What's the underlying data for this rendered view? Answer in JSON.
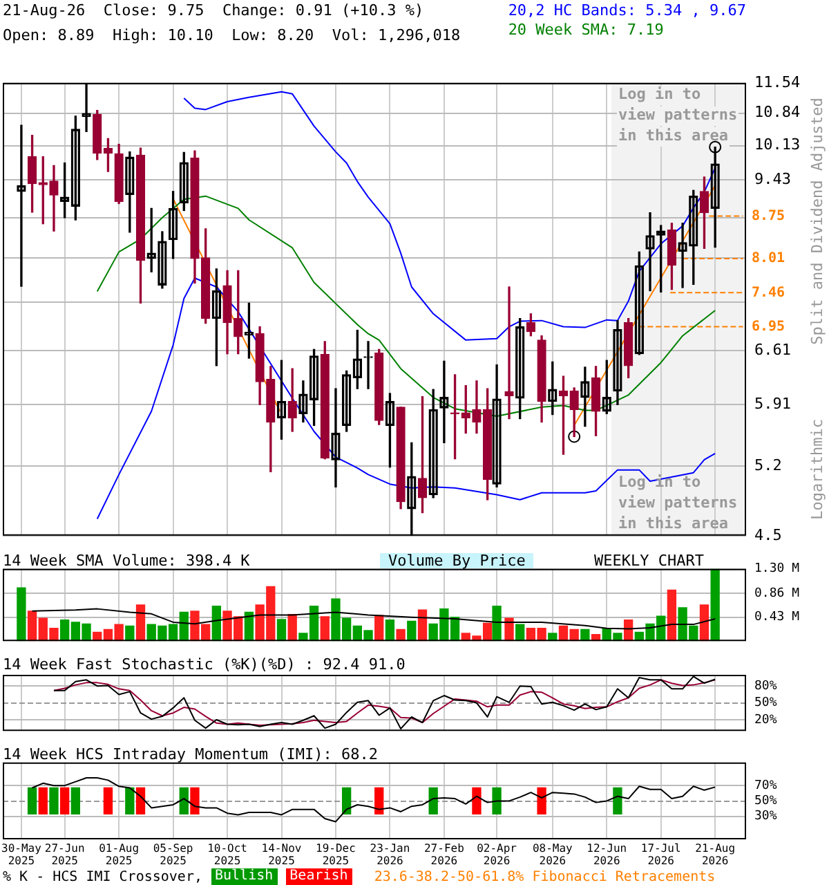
{
  "chart_data": [
    {
      "type": "candlestick",
      "title": "21-Aug-26  Close: 9.75  Change: 0.91 (+10.3 %)",
      "subtitle": "Open: 8.89  High: 10.10  Low: 8.20  Vol: 1,296,018",
      "ylabel": "Split and Dividend Adjusted",
      "color": "#990033",
      "log": true,
      "grid": true,
      "legend": "top right",
      "tick_labels": "y",
      "colors": [
        "#000000",
        "#990033",
        "#990033",
        "#990033",
        "#000000",
        "#000000",
        "#000000",
        "#990033",
        "#990033",
        "#990033",
        "#000000",
        "#990033",
        "#000000",
        "#000000",
        "#000000",
        "#000000",
        "#990033",
        "#990033",
        "#000000",
        "#990033",
        "#990033",
        "#000000",
        "#990033",
        "#990033",
        "#000000",
        "#990033",
        "#000000",
        "#000000",
        "#990033",
        "#000000",
        "#000000",
        "#000000",
        "#000000",
        "#990033",
        "#000000",
        "#990033",
        "#000000",
        "#990033",
        "#000000",
        "#000000",
        "#990033",
        "#990033",
        "#990033",
        "#990033",
        "#000000",
        "#990033",
        "#000000",
        "#990033",
        "#990033",
        "#000000",
        "#990033",
        "#990033",
        "#000000",
        "#990033",
        "#000000",
        "#000000",
        "#990033",
        "#000000",
        "#000000",
        "#000000",
        "#990033",
        "#000000",
        "#000000",
        "#990033",
        "#000000"
      ],
      "x": [
        "2025-05-30",
        "2025-06-06",
        "2025-06-13",
        "2025-06-20",
        "2025-06-27",
        "2025-07-04",
        "2025-07-11",
        "2025-07-18",
        "2025-07-25",
        "2025-08-01",
        "2025-08-08",
        "2025-08-15",
        "2025-08-22",
        "2025-08-29",
        "2025-09-05",
        "2025-09-12",
        "2025-09-19",
        "2025-09-26",
        "2025-10-03",
        "2025-10-10",
        "2025-10-17",
        "2025-10-24",
        "2025-10-31",
        "2025-11-07",
        "2025-11-14",
        "2025-11-21",
        "2025-11-28",
        "2025-12-05",
        "2025-12-12",
        "2025-12-19",
        "2025-12-26",
        "2026-01-02",
        "2026-01-09",
        "2026-01-16",
        "2026-01-23",
        "2026-01-30",
        "2026-02-06",
        "2026-02-13",
        "2026-02-20",
        "2026-02-27",
        "2026-03-06",
        "2026-03-13",
        "2026-03-20",
        "2026-03-27",
        "2026-04-02",
        "2026-04-10",
        "2026-04-17",
        "2026-04-24",
        "2026-05-01",
        "2026-05-08",
        "2026-05-15",
        "2026-05-22",
        "2026-05-29",
        "2026-06-05",
        "2026-06-12",
        "2026-06-19",
        "2026-06-26",
        "2026-07-03",
        "2026-07-10",
        "2026-07-17",
        "2026-07-24",
        "2026-07-31",
        "2026-08-07",
        "2026-08-14",
        "2026-08-21"
      ],
      "ohlc": [
        [
          9.21,
          10.57,
          7.56,
          9.32
        ],
        [
          9.9,
          10.35,
          8.82,
          9.36
        ],
        [
          9.38,
          9.9,
          8.61,
          9.34
        ],
        [
          9.41,
          9.72,
          8.48,
          9.14
        ],
        [
          9.02,
          9.77,
          8.72,
          9.1
        ],
        [
          8.93,
          10.77,
          8.68,
          10.48
        ],
        [
          10.76,
          11.54,
          10.43,
          10.83
        ],
        [
          10.81,
          10.9,
          9.84,
          9.97
        ],
        [
          10.07,
          10.28,
          9.6,
          9.97
        ],
        [
          9.96,
          10.16,
          8.98,
          9.02
        ],
        [
          9.15,
          10.0,
          8.46,
          9.89
        ],
        [
          9.93,
          10.08,
          7.3,
          7.98
        ],
        [
          8.01,
          8.89,
          7.79,
          8.1
        ],
        [
          7.58,
          8.47,
          7.53,
          8.3
        ],
        [
          8.33,
          9.21,
          8.01,
          8.89
        ],
        [
          8.99,
          9.99,
          8.85,
          9.78
        ],
        [
          9.87,
          10.02,
          7.61,
          8.01
        ],
        [
          8.02,
          8.52,
          7.0,
          7.07
        ],
        [
          7.07,
          7.84,
          6.41,
          7.49
        ],
        [
          7.57,
          7.81,
          6.57,
          7.01
        ],
        [
          7.07,
          7.81,
          6.57,
          6.81
        ],
        [
          6.83,
          7.3,
          6.51,
          6.87
        ],
        [
          6.85,
          6.95,
          5.91,
          6.2
        ],
        [
          6.23,
          6.4,
          5.14,
          5.7
        ],
        [
          5.75,
          6.48,
          5.5,
          5.95
        ],
        [
          5.95,
          6.37,
          5.59,
          5.75
        ],
        [
          5.8,
          6.21,
          5.7,
          6.04
        ],
        [
          5.97,
          6.63,
          5.66,
          6.54
        ],
        [
          6.56,
          6.74,
          5.28,
          5.29
        ],
        [
          5.27,
          6.11,
          4.98,
          5.57
        ],
        [
          5.66,
          6.34,
          5.59,
          6.29
        ],
        [
          6.25,
          6.9,
          6.11,
          6.5
        ],
        [
          6.52,
          6.74,
          6.11,
          6.53
        ],
        [
          6.58,
          6.63,
          5.67,
          5.72
        ],
        [
          5.66,
          6.05,
          5.19,
          5.95
        ],
        [
          5.88,
          5.88,
          4.76,
          4.83
        ],
        [
          4.76,
          5.46,
          4.5,
          5.09
        ],
        [
          5.07,
          6.01,
          4.72,
          4.87
        ],
        [
          4.9,
          6.1,
          4.87,
          5.85
        ],
        [
          5.87,
          6.47,
          5.46,
          6.0
        ],
        [
          5.81,
          6.29,
          5.28,
          5.8
        ],
        [
          5.81,
          6.15,
          5.57,
          5.75
        ],
        [
          5.85,
          6.21,
          5.57,
          5.7
        ],
        [
          5.85,
          6.11,
          4.85,
          5.06
        ],
        [
          5.01,
          6.42,
          4.98,
          5.98
        ],
        [
          6.07,
          7.55,
          5.74,
          6.02
        ],
        [
          5.99,
          7.07,
          5.74,
          6.95
        ],
        [
          7.01,
          7.14,
          6.82,
          6.88
        ],
        [
          6.76,
          6.82,
          5.7,
          5.95
        ],
        [
          5.95,
          6.46,
          5.79,
          6.1
        ],
        [
          6.08,
          6.27,
          5.33,
          6.02
        ],
        [
          6.08,
          6.12,
          5.53,
          5.85
        ],
        [
          6.0,
          6.39,
          5.65,
          6.2
        ],
        [
          6.25,
          6.4,
          5.54,
          5.83
        ],
        [
          5.83,
          6.48,
          5.8,
          6.0
        ],
        [
          6.08,
          7.04,
          5.91,
          6.91
        ],
        [
          7.01,
          7.07,
          6.25,
          6.41
        ],
        [
          6.57,
          8.12,
          6.56,
          7.89
        ],
        [
          8.17,
          8.81,
          7.49,
          8.4
        ],
        [
          8.41,
          8.58,
          7.47,
          8.48
        ],
        [
          8.5,
          8.62,
          7.51,
          7.9
        ],
        [
          8.13,
          8.62,
          7.54,
          8.28
        ],
        [
          8.22,
          9.23,
          7.59,
          9.12
        ],
        [
          9.21,
          9.49,
          8.18,
          8.81
        ],
        [
          8.89,
          10.1,
          8.2,
          9.75
        ]
      ],
      "series": [
        {
          "type": "line",
          "name": "20,2 HC Bands: 5.34 , 9.67",
          "color": "#0000ff",
          "x": [
            "2025-09-12",
            "2025-09-19",
            "2025-09-26",
            "2025-10-10",
            "2025-10-24",
            "2025-11-14",
            "2025-11-21",
            "2025-12-05",
            "2025-12-19",
            "2025-12-26",
            "2026-01-02",
            "2026-01-09",
            "2026-01-23",
            "2026-01-30",
            "2026-02-06",
            "2026-02-20",
            "2026-03-13",
            "2026-04-02",
            "2026-04-10",
            "2026-04-17",
            "2026-05-01",
            "2026-05-15",
            "2026-05-29",
            "2026-06-12",
            "2026-06-19",
            "2026-06-26",
            "2026-07-03",
            "2026-07-17",
            "2026-07-31",
            "2026-08-07",
            "2026-08-14",
            "2026-08-21"
          ],
          "values": [
            11.18,
            10.95,
            10.92,
            11.1,
            11.2,
            11.33,
            11.28,
            10.55,
            10.0,
            9.77,
            9.4,
            9.1,
            8.61,
            8.1,
            7.55,
            7.14,
            6.76,
            6.78,
            6.95,
            7.03,
            7.04,
            6.95,
            6.94,
            7.05,
            7.04,
            7.33,
            7.8,
            8.26,
            8.57,
            8.9,
            9.2,
            9.67
          ]
        },
        {
          "type": "line",
          "color": "#0000ff",
          "x": [
            "2025-07-18",
            "2025-08-01",
            "2025-08-22",
            "2025-09-05",
            "2025-09-12",
            "2025-09-19",
            "2025-10-03",
            "2025-10-17",
            "2025-11-21",
            "2025-12-05",
            "2025-12-19",
            "2026-01-02",
            "2026-01-09",
            "2026-01-23",
            "2026-02-06",
            "2026-02-20",
            "2026-03-06",
            "2026-04-02",
            "2026-04-17",
            "2026-05-01",
            "2026-05-29",
            "2026-06-05",
            "2026-06-19",
            "2026-07-03",
            "2026-07-10",
            "2026-08-07",
            "2026-08-14",
            "2026-08-21"
          ],
          "values": [
            4.66,
            5.11,
            5.83,
            6.69,
            7.37,
            7.69,
            7.55,
            7.17,
            5.99,
            5.59,
            5.3,
            5.18,
            5.11,
            5.01,
            4.97,
            4.98,
            4.97,
            4.9,
            4.85,
            4.92,
            4.92,
            4.94,
            5.16,
            5.16,
            5.04,
            5.13,
            5.27,
            5.34
          ]
        },
        {
          "type": "line",
          "name": "20 Week SMA: 7.19",
          "color": "#008000",
          "x": [
            "2025-07-18",
            "2025-08-01",
            "2025-08-15",
            "2025-08-29",
            "2025-09-12",
            "2025-09-26",
            "2025-10-17",
            "2025-10-24",
            "2025-11-21",
            "2025-12-05",
            "2026-01-02",
            "2026-01-09",
            "2026-01-16",
            "2026-01-30",
            "2026-02-20",
            "2026-03-06",
            "2026-04-02",
            "2026-05-01",
            "2026-05-15",
            "2026-05-29",
            "2026-06-05",
            "2026-06-26",
            "2026-07-17",
            "2026-07-31",
            "2026-08-21"
          ],
          "values": [
            7.48,
            8.12,
            8.34,
            8.72,
            9.06,
            9.12,
            8.89,
            8.68,
            8.19,
            7.62,
            6.98,
            6.85,
            6.76,
            6.37,
            6.0,
            5.86,
            5.77,
            5.88,
            5.9,
            5.84,
            5.84,
            6.03,
            6.45,
            6.82,
            7.19
          ]
        },
        {
          "type": "line",
          "color": "#ff8000",
          "x": [
            "2025-09-05",
            "2025-11-13"
          ],
          "values": [
            9.07,
            5.83
          ]
        },
        {
          "type": "line",
          "color": "#ff8000",
          "x": [
            "2026-05-22",
            "2026-08-21"
          ],
          "values": [
            5.66,
            9.32
          ]
        },
        {
          "type": "line",
          "name": "8.75",
          "color": "#ff8000",
          "line_style": "dashed",
          "x": [
            "2026-08-17",
            "2026-09-08"
          ],
          "values": [
            8.75,
            8.75
          ]
        },
        {
          "type": "line",
          "name": "8.01",
          "color": "#ff8000",
          "line_style": "dashed",
          "x": [
            "2026-07-31",
            "2026-09-08"
          ],
          "values": [
            8.01,
            8.01
          ]
        },
        {
          "type": "line",
          "name": "7.46",
          "color": "#ff8000",
          "line_style": "dashed",
          "x": [
            "2026-07-23",
            "2026-09-08"
          ],
          "values": [
            7.46,
            7.46
          ]
        },
        {
          "type": "line",
          "name": "6.95",
          "color": "#ff8000",
          "line_style": "dashed",
          "x": [
            "2026-07-03",
            "2026-09-08"
          ],
          "values": [
            6.95,
            6.95
          ]
        },
        {
          "type": "scatter",
          "color": "#000000",
          "marker": "circle",
          "x": [
            "2026-05-22",
            "2026-08-21"
          ],
          "values": [
            5.53,
            10.1
          ]
        }
      ],
      "ylim": [
        4.5,
        11.54
      ],
      "yticks": [
        4.5,
        5.2,
        5.91,
        6.61,
        {
          "value": 7.31,
          "label": null
        },
        {
          "value": 8.02,
          "label": null
        },
        {
          "value": 8.72,
          "label": null
        },
        9.43,
        10.13,
        10.84,
        11.54
      ],
      "xlim": [
        "2025-05-18",
        "2026-09-10"
      ],
      "xticks": [
        {
          "value": "2025-05-30",
          "label": null
        },
        {
          "value": "2025-06-27",
          "label": null
        },
        {
          "value": "2025-08-01",
          "label": null
        },
        {
          "value": "2025-09-05",
          "label": null
        },
        {
          "value": "2025-10-10",
          "label": null
        },
        {
          "value": "2025-11-14",
          "label": null
        },
        {
          "value": "2025-12-19",
          "label": null
        },
        {
          "value": "2026-01-23",
          "label": null
        },
        {
          "value": "2026-02-27",
          "label": null
        },
        {
          "value": "2026-04-02",
          "label": null
        },
        {
          "value": "2026-05-08",
          "label": null
        },
        {
          "value": "2026-06-12",
          "label": null
        },
        {
          "value": "2026-07-17",
          "label": null
        },
        {
          "value": "2026-08-21",
          "label": null
        }
      ],
      "bands": [
        {
          "axis": "x",
          "from": "2026-06-15",
          "to": "2026-09-10",
          "label": "Log in to view patterns in this area",
          "color": "#f2f2f2"
        }
      ],
      "annotations": [
        "Logarithmic",
        "Log in to view patterns in this area"
      ]
    },
    {
      "type": "bar",
      "title": "14 Week SMA Volume: 398.4 K",
      "grid": true,
      "tick_labels": "y",
      "x": [
        "2025-05-30",
        "2025-06-06",
        "2025-06-13",
        "2025-06-20",
        "2025-06-27",
        "2025-07-04",
        "2025-07-11",
        "2025-07-18",
        "2025-07-25",
        "2025-08-01",
        "2025-08-08",
        "2025-08-15",
        "2025-08-22",
        "2025-08-29",
        "2025-09-05",
        "2025-09-12",
        "2025-09-19",
        "2025-09-26",
        "2025-10-03",
        "2025-10-10",
        "2025-10-17",
        "2025-10-24",
        "2025-10-31",
        "2025-11-07",
        "2025-11-14",
        "2025-11-21",
        "2025-11-28",
        "2025-12-05",
        "2025-12-12",
        "2025-12-19",
        "2025-12-26",
        "2026-01-02",
        "2026-01-09",
        "2026-01-16",
        "2026-01-23",
        "2026-01-30",
        "2026-02-06",
        "2026-02-13",
        "2026-02-20",
        "2026-02-27",
        "2026-03-06",
        "2026-03-13",
        "2026-03-20",
        "2026-03-27",
        "2026-04-02",
        "2026-04-10",
        "2026-04-17",
        "2026-04-24",
        "2026-05-01",
        "2026-05-08",
        "2026-05-15",
        "2026-05-22",
        "2026-05-29",
        "2026-06-05",
        "2026-06-12",
        "2026-06-19",
        "2026-06-26",
        "2026-07-03",
        "2026-07-10",
        "2026-07-17",
        "2026-07-24",
        "2026-07-31",
        "2026-08-07",
        "2026-08-14",
        "2026-08-21"
      ],
      "series": [
        {
          "type": "bar",
          "values": [
            0.96,
            0.54,
            0.41,
            0.23,
            0.38,
            0.34,
            0.31,
            0.16,
            0.21,
            0.3,
            0.27,
            0.65,
            0.3,
            0.27,
            0.3,
            0.52,
            0.54,
            0.3,
            0.63,
            0.54,
            0.44,
            0.52,
            0.65,
            0.98,
            0.39,
            0.48,
            0.14,
            0.63,
            0.44,
            0.76,
            0.41,
            0.27,
            0.19,
            0.46,
            0.38,
            0.21,
            0.36,
            0.56,
            0.31,
            0.58,
            0.43,
            0.14,
            0.09,
            0.32,
            0.63,
            0.41,
            0.3,
            0.23,
            0.23,
            0.14,
            0.27,
            0.21,
            0.21,
            0.12,
            0.23,
            0.14,
            0.38,
            0.16,
            0.31,
            0.45,
            0.92,
            0.6,
            0.27,
            0.65,
            1.3
          ],
          "colors": [
            "#00a000",
            "#ff2020",
            "#ff2020",
            "#ff2020",
            "#00a000",
            "#00a000",
            "#00a000",
            "#ff2020",
            "#ff2020",
            "#ff2020",
            "#00a000",
            "#ff2020",
            "#00a000",
            "#00a000",
            "#00a000",
            "#00a000",
            "#ff2020",
            "#ff2020",
            "#00a000",
            "#ff2020",
            "#ff2020",
            "#00a000",
            "#ff2020",
            "#ff2020",
            "#00a000",
            "#ff2020",
            "#00a000",
            "#00a000",
            "#ff2020",
            "#00a000",
            "#00a000",
            "#00a000",
            "#00a000",
            "#ff2020",
            "#00a000",
            "#ff2020",
            "#00a000",
            "#ff2020",
            "#00a000",
            "#00a000",
            "#00a000",
            "#ff2020",
            "#ff2020",
            "#ff2020",
            "#00a000",
            "#ff2020",
            "#00a000",
            "#ff2020",
            "#ff2020",
            "#00a000",
            "#ff2020",
            "#ff2020",
            "#00a000",
            "#ff2020",
            "#00a000",
            "#00a000",
            "#ff2020",
            "#00a000",
            "#00a000",
            "#00a000",
            "#ff2020",
            "#00a000",
            "#00a000",
            "#ff2020",
            "#00a000"
          ]
        },
        {
          "type": "line",
          "color": "#000000",
          "x": [
            "2025-06-06",
            "2025-07-04",
            "2025-07-18",
            "2025-08-08",
            "2025-08-22",
            "2025-09-05",
            "2025-09-19",
            "2025-10-03",
            "2025-10-31",
            "2025-11-21",
            "2025-12-19",
            "2026-01-09",
            "2026-02-06",
            "2026-03-06",
            "2026-04-02",
            "2026-05-01",
            "2026-05-29",
            "2026-06-12",
            "2026-06-26",
            "2026-07-10",
            "2026-07-24",
            "2026-08-07",
            "2026-08-21"
          ],
          "values": [
            0.54,
            0.56,
            0.58,
            0.52,
            0.49,
            0.34,
            0.31,
            0.37,
            0.47,
            0.47,
            0.52,
            0.47,
            0.43,
            0.4,
            0.34,
            0.34,
            0.28,
            0.23,
            0.22,
            0.24,
            0.3,
            0.3,
            0.4
          ]
        }
      ],
      "ylim": [
        0,
        1.3
      ],
      "yticks": [
        {
          "value": 0.43,
          "label": "0.43 M"
        },
        {
          "value": 0.86,
          "label": "0.86 M"
        },
        {
          "value": 1.3,
          "label": "1.30 M"
        }
      ],
      "xlim": [
        "2025-05-18",
        "2026-09-10"
      ],
      "xticks": [
        {
          "value": "2025-05-30",
          "label": null
        },
        {
          "value": "2025-06-27",
          "label": null
        },
        {
          "value": "2025-08-01",
          "label": null
        },
        {
          "value": "2025-09-05",
          "label": null
        },
        {
          "value": "2025-10-10",
          "label": null
        },
        {
          "value": "2025-11-14",
          "label": null
        },
        {
          "value": "2025-12-19",
          "label": null
        },
        {
          "value": "2026-01-23",
          "label": null
        },
        {
          "value": "2026-02-27",
          "label": null
        },
        {
          "value": "2026-04-02",
          "label": null
        },
        {
          "value": "2026-05-08",
          "label": null
        },
        {
          "value": "2026-06-12",
          "label": null
        },
        {
          "value": "2026-07-17",
          "label": null
        },
        {
          "value": "2026-08-21",
          "label": null
        }
      ],
      "annotations": [
        "Volume By Price",
        "WEEKLY CHART"
      ]
    },
    {
      "type": "line",
      "title": "14 Week Fast Stochastic (%K)(%D) : 92.4 91.0",
      "grid": true,
      "tick_labels": "y",
      "x": [
        "2025-06-20",
        "2025-06-27",
        "2025-07-04",
        "2025-07-11",
        "2025-07-18",
        "2025-07-25",
        "2025-08-01",
        "2025-08-08",
        "2025-08-15",
        "2025-08-22",
        "2025-08-29",
        "2025-09-05",
        "2025-09-12",
        "2025-09-19",
        "2025-09-26",
        "2025-10-03",
        "2025-10-10",
        "2025-10-17",
        "2025-10-24",
        "2025-10-31",
        "2025-11-07",
        "2025-11-14",
        "2025-11-21",
        "2025-11-28",
        "2025-12-05",
        "2025-12-12",
        "2025-12-19",
        "2025-12-26",
        "2026-01-02",
        "2026-01-09",
        "2026-01-16",
        "2026-01-23",
        "2026-01-30",
        "2026-02-06",
        "2026-02-13",
        "2026-02-20",
        "2026-02-27",
        "2026-03-06",
        "2026-03-13",
        "2026-03-20",
        "2026-03-27",
        "2026-04-02",
        "2026-04-10",
        "2026-04-17",
        "2026-04-24",
        "2026-05-01",
        "2026-05-08",
        "2026-05-15",
        "2026-05-22",
        "2026-05-29",
        "2026-06-05",
        "2026-06-12",
        "2026-06-19",
        "2026-06-26",
        "2026-07-03",
        "2026-07-10",
        "2026-07-17",
        "2026-07-24",
        "2026-07-31",
        "2026-08-07",
        "2026-08-14",
        "2026-08-21"
      ],
      "series": [
        {
          "type": "line",
          "color": "#000000",
          "values": [
            72,
            72,
            88,
            91,
            80,
            81,
            65,
            70,
            32,
            21,
            26,
            41,
            59,
            19,
            5,
            20,
            12,
            11,
            12,
            8,
            12,
            15,
            12,
            19,
            27,
            5,
            12,
            33,
            51,
            54,
            28,
            41,
            4,
            25,
            15,
            54,
            63,
            55,
            54,
            50,
            25,
            61,
            51,
            80,
            79,
            48,
            51,
            45,
            37,
            48,
            38,
            43,
            75,
            59,
            95,
            91,
            91,
            75,
            75,
            97,
            85,
            92
          ]
        },
        {
          "type": "line",
          "color": "#990033",
          "values": [
            72,
            76,
            82,
            86,
            86,
            83,
            75,
            72,
            55,
            36,
            27,
            32,
            42,
            39,
            26,
            14,
            12,
            14,
            12,
            10,
            11,
            12,
            13,
            15,
            19,
            17,
            15,
            17,
            32,
            46,
            44,
            41,
            24,
            23,
            15,
            31,
            44,
            57,
            55,
            53,
            43,
            46,
            46,
            64,
            70,
            69,
            59,
            48,
            45,
            40,
            42,
            43,
            52,
            59,
            76,
            82,
            91,
            85,
            81,
            82,
            86,
            91
          ]
        }
      ],
      "ylim": [
        0,
        100
      ],
      "yticks": [
        {
          "value": 20,
          "label": "20%"
        },
        {
          "value": 50,
          "label": "50%"
        },
        {
          "value": 80,
          "label": "80%"
        }
      ],
      "ref_lines": [
        {
          "axis": "y",
          "value": 50,
          "line_style": "dashed",
          "color": "#999999"
        }
      ],
      "xlim": [
        "2025-05-18",
        "2026-09-10"
      ],
      "xticks": [
        {
          "value": "2025-05-30",
          "label": null
        },
        {
          "value": "2025-06-27",
          "label": null
        },
        {
          "value": "2025-08-01",
          "label": null
        },
        {
          "value": "2025-09-05",
          "label": null
        },
        {
          "value": "2025-10-10",
          "label": null
        },
        {
          "value": "2025-11-14",
          "label": null
        },
        {
          "value": "2025-12-19",
          "label": null
        },
        {
          "value": "2026-01-23",
          "label": null
        },
        {
          "value": "2026-02-27",
          "label": null
        },
        {
          "value": "2026-04-02",
          "label": null
        },
        {
          "value": "2026-05-08",
          "label": null
        },
        {
          "value": "2026-06-12",
          "label": null
        },
        {
          "value": "2026-07-17",
          "label": null
        },
        {
          "value": "2026-08-21",
          "label": null
        }
      ]
    },
    {
      "type": "line",
      "title": "14 Week HCS Intraday Momentum (IMI): 68.2",
      "grid": true,
      "legend": "bottom left",
      "legend_title": "% K - HCS IMI Crossover,",
      "x": [
        "2025-06-06",
        "2025-06-13",
        "2025-06-20",
        "2025-06-27",
        "2025-07-04",
        "2025-07-11",
        "2025-07-18",
        "2025-07-25",
        "2025-08-01",
        "2025-08-08",
        "2025-08-15",
        "2025-08-22",
        "2025-08-29",
        "2025-09-05",
        "2025-09-12",
        "2025-09-19",
        "2025-09-26",
        "2025-10-03",
        "2025-10-10",
        "2025-10-17",
        "2025-10-24",
        "2025-10-31",
        "2025-11-07",
        "2025-11-14",
        "2025-11-21",
        "2025-11-28",
        "2025-12-05",
        "2025-12-12",
        "2025-12-19",
        "2025-12-26",
        "2026-01-02",
        "2026-01-09",
        "2026-01-16",
        "2026-01-23",
        "2026-01-30",
        "2026-02-06",
        "2026-02-13",
        "2026-02-20",
        "2026-02-27",
        "2026-03-06",
        "2026-03-13",
        "2026-03-20",
        "2026-03-27",
        "2026-04-02",
        "2026-04-10",
        "2026-04-17",
        "2026-04-24",
        "2026-05-01",
        "2026-05-08",
        "2026-05-15",
        "2026-05-22",
        "2026-05-29",
        "2026-06-05",
        "2026-06-12",
        "2026-06-19",
        "2026-06-26",
        "2026-07-03",
        "2026-07-10",
        "2026-07-17",
        "2026-07-24",
        "2026-07-31",
        "2026-08-07",
        "2026-08-14",
        "2026-08-21"
      ],
      "series": [
        {
          "type": "line",
          "color": "#000000",
          "values": [
            67,
            73,
            70,
            70,
            75,
            80,
            80,
            77,
            69,
            67,
            56,
            41,
            43,
            45,
            53,
            43,
            41,
            41,
            34,
            32,
            35,
            35,
            35,
            32,
            39,
            39,
            39,
            27,
            23,
            39,
            45,
            43,
            39,
            41,
            36,
            43,
            45,
            53,
            54,
            53,
            46,
            56,
            48,
            50,
            50,
            55,
            61,
            54,
            61,
            60,
            59,
            55,
            48,
            50,
            56,
            53,
            69,
            65,
            65,
            53,
            56,
            69,
            64,
            68
          ]
        },
        {
          "type": "bar",
          "name": "Bullish",
          "color": "#009900",
          "x": [
            "2025-06-06",
            "2025-06-20",
            "2025-07-04",
            "2025-08-08",
            "2025-09-12",
            "2025-12-26",
            "2026-02-20",
            "2026-04-02",
            "2026-06-19"
          ],
          "base": [
            33,
            33,
            33,
            33,
            33,
            33,
            33,
            33,
            33
          ],
          "values": [
            34,
            34,
            34,
            34,
            34,
            34,
            34,
            34,
            34
          ]
        },
        {
          "type": "bar",
          "name": "Bearish",
          "color": "#ff0000",
          "x": [
            "2025-06-13",
            "2025-06-27",
            "2025-07-25",
            "2025-08-15",
            "2025-09-19",
            "2026-01-16",
            "2026-03-20",
            "2026-05-01"
          ],
          "base": [
            33,
            33,
            33,
            33,
            33,
            33,
            33,
            33
          ],
          "values": [
            34,
            34,
            34,
            34,
            34,
            34,
            34,
            34
          ]
        }
      ],
      "ylim": [
        0,
        100
      ],
      "yticks": [
        {
          "value": 30,
          "label": "30%"
        },
        {
          "value": 50,
          "label": "50%"
        },
        {
          "value": 70,
          "label": "70%"
        }
      ],
      "ref_lines": [
        {
          "axis": "y",
          "value": 50,
          "line_style": "dashed",
          "color": "#999999"
        }
      ],
      "xlim": [
        "2025-05-18",
        "2026-09-10"
      ],
      "xticks": [
        {
          "value": "2025-05-30",
          "label": "30-May 2025"
        },
        {
          "value": "2025-06-27",
          "label": "27-Jun 2025"
        },
        {
          "value": "2025-08-01",
          "label": "01-Aug 2025"
        },
        {
          "value": "2025-09-05",
          "label": "05-Sep 2025"
        },
        {
          "value": "2025-10-10",
          "label": "10-Oct 2025"
        },
        {
          "value": "2025-11-14",
          "label": "14-Nov 2025"
        },
        {
          "value": "2025-12-19",
          "label": "19-Dec 2025"
        },
        {
          "value": "2026-01-23",
          "label": "23-Jan 2026"
        },
        {
          "value": "2026-02-27",
          "label": "27-Feb 2026"
        },
        {
          "value": "2026-04-02",
          "label": "02-Apr 2026"
        },
        {
          "value": "2026-05-08",
          "label": "08-May 2026"
        },
        {
          "value": "2026-06-12",
          "label": "12-Jun 2026"
        },
        {
          "value": "2026-07-17",
          "label": "17-Jul 2026"
        },
        {
          "value": "2026-08-21",
          "label": "21-Aug 2026"
        }
      ],
      "annotations": [
        "23.6-38.2-50-61.8% Fibonacci Retracements"
      ]
    }
  ]
}
